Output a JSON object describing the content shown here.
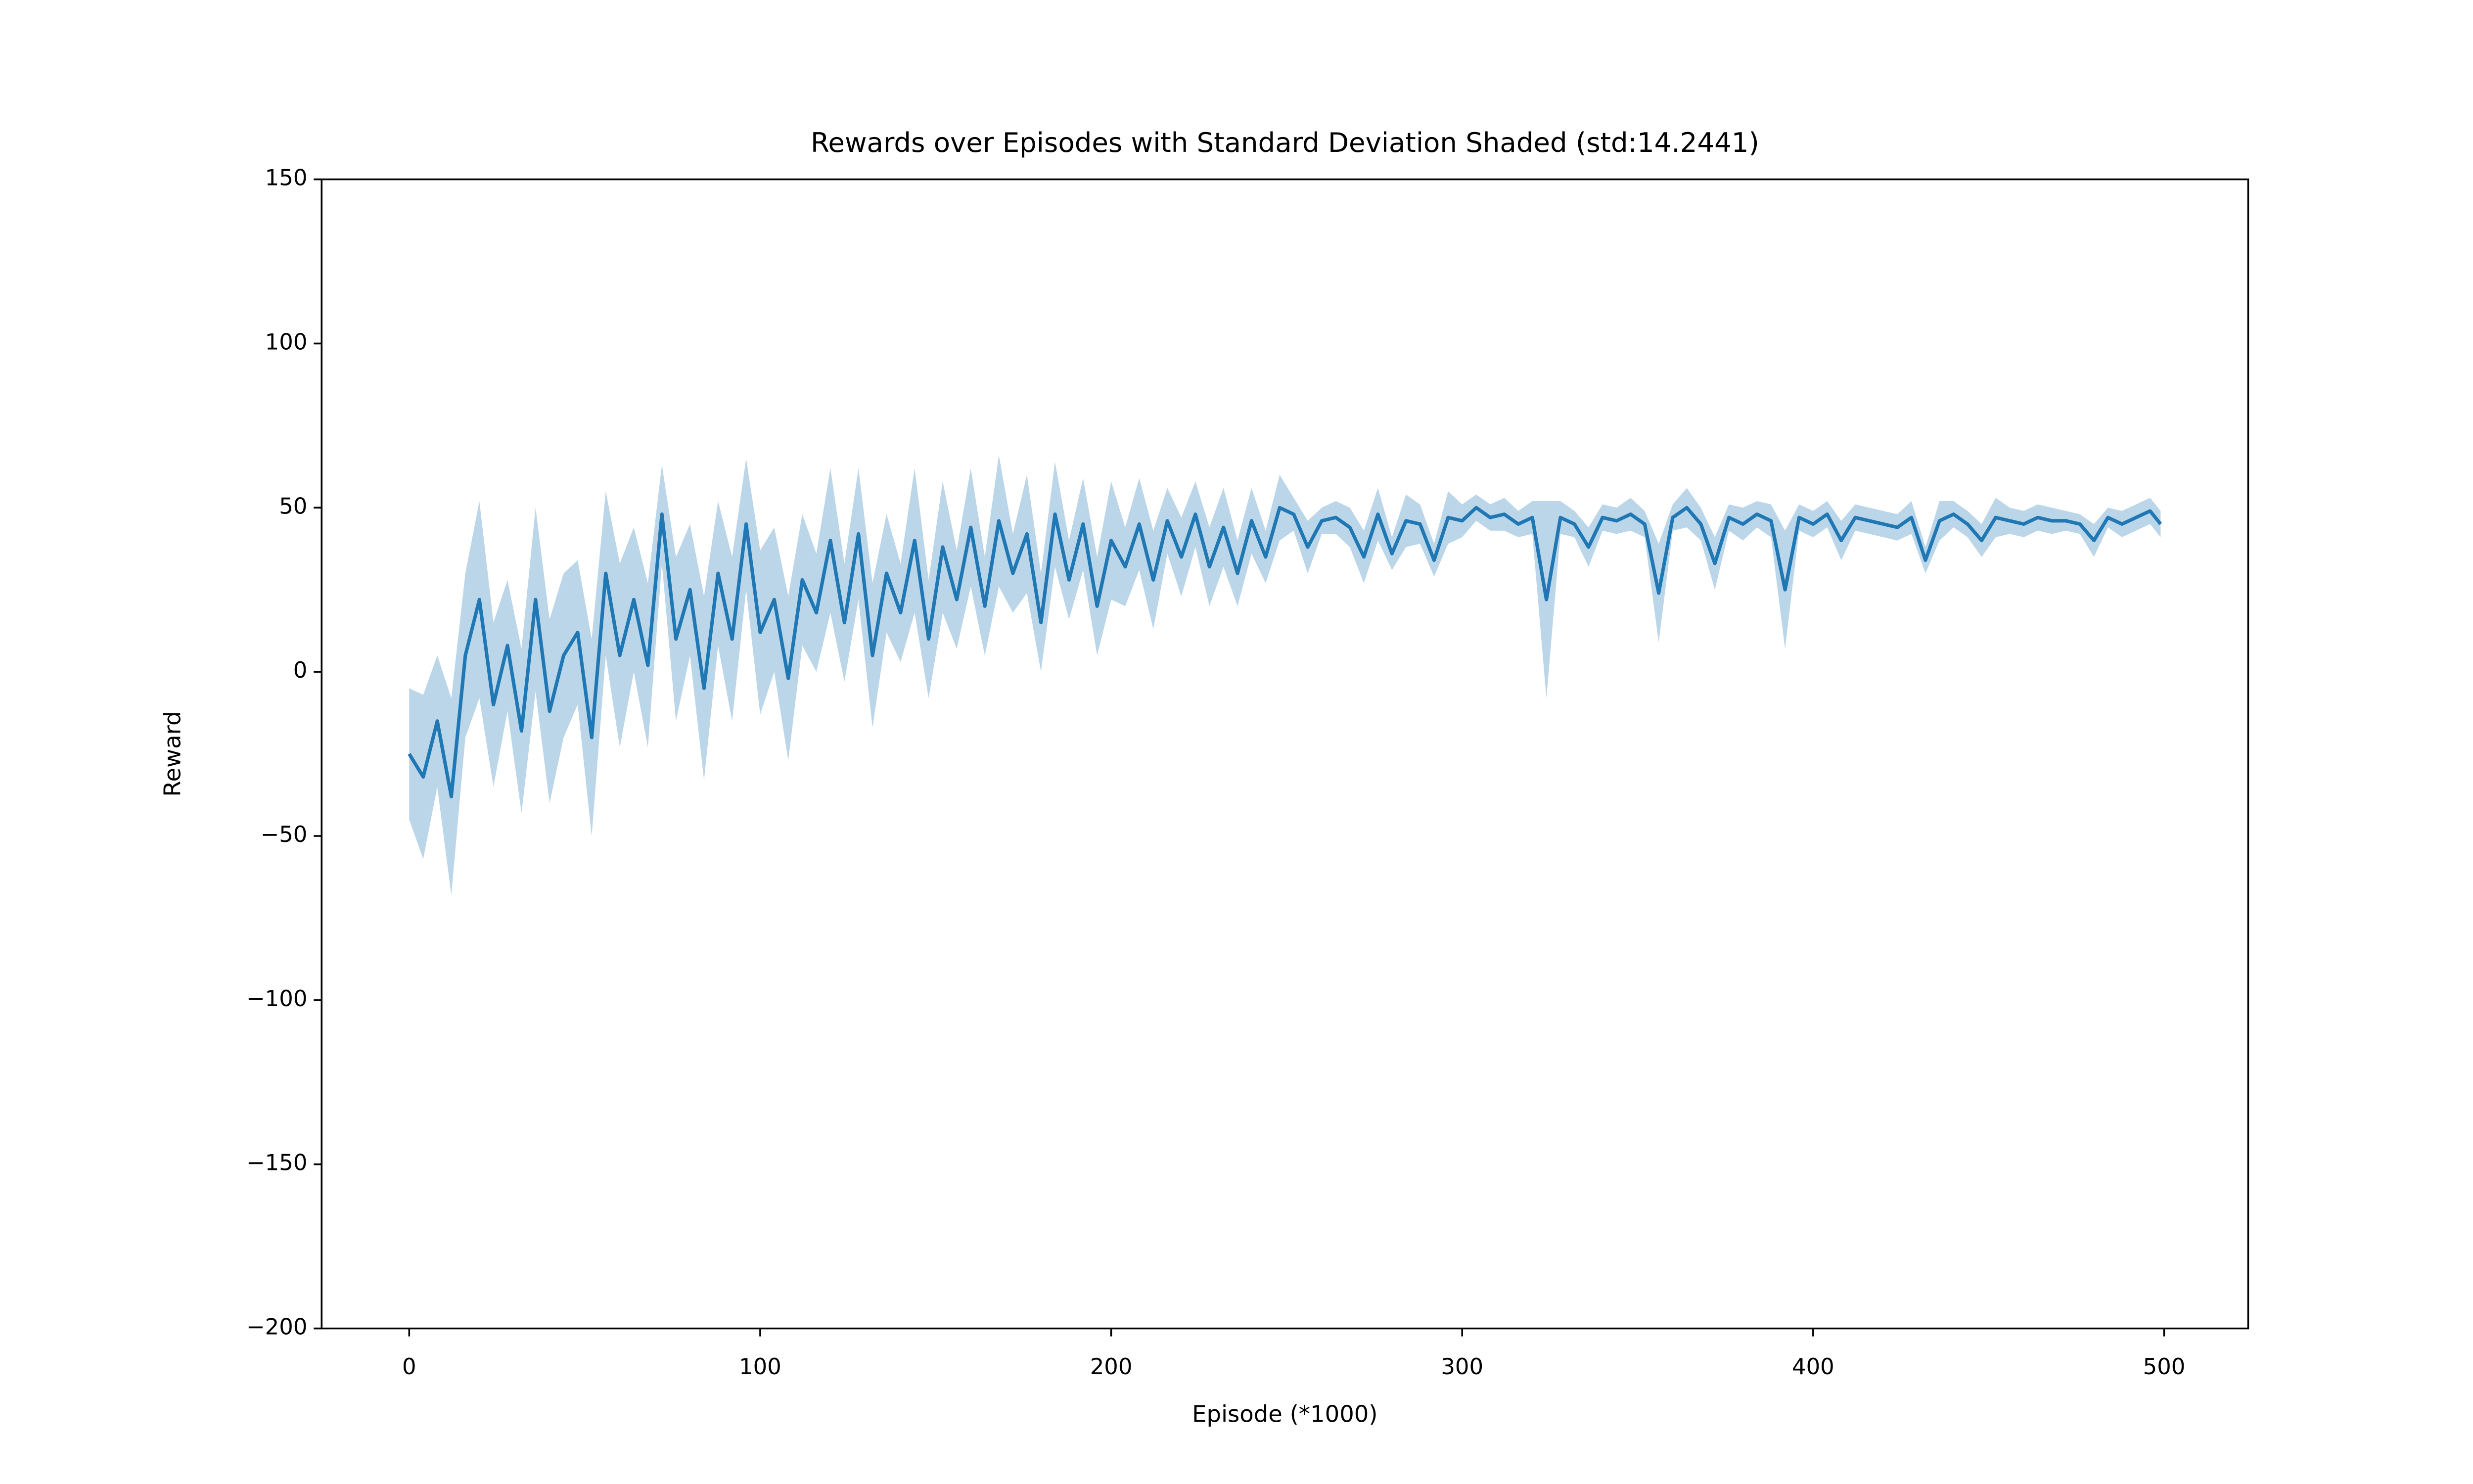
{
  "chart_data": {
    "type": "line-band",
    "title": "Rewards over Episodes with Standard Deviation Shaded (std:14.2441)",
    "xlabel": "Episode (*1000)",
    "ylabel": "Reward",
    "color": "#1f77b4",
    "band_color": "#1f77b4",
    "xlim": [
      -24.95,
      523.95
    ],
    "ylim": [
      -200,
      150
    ],
    "xticks": [
      0,
      100,
      200,
      300,
      400,
      500
    ],
    "yticks": [
      {
        "value": -200,
        "label": "−200"
      },
      {
        "value": -150,
        "label": "−150"
      },
      {
        "value": -100,
        "label": "−100"
      },
      {
        "value": -50,
        "label": "−50"
      },
      0,
      50,
      100,
      150
    ],
    "x": [
      0,
      4,
      8,
      12,
      16,
      20,
      24,
      28,
      32,
      36,
      40,
      44,
      48,
      52,
      56,
      60,
      64,
      68,
      72,
      76,
      80,
      84,
      88,
      92,
      96,
      100,
      104,
      108,
      112,
      116,
      120,
      124,
      128,
      132,
      136,
      140,
      144,
      148,
      152,
      156,
      160,
      164,
      168,
      172,
      176,
      180,
      184,
      188,
      192,
      196,
      200,
      204,
      208,
      212,
      216,
      220,
      224,
      228,
      232,
      236,
      240,
      244,
      248,
      252,
      256,
      260,
      264,
      268,
      272,
      276,
      280,
      284,
      288,
      292,
      296,
      300,
      304,
      308,
      312,
      316,
      320,
      324,
      328,
      332,
      336,
      340,
      344,
      348,
      352,
      356,
      360,
      364,
      368,
      372,
      376,
      380,
      384,
      388,
      392,
      396,
      400,
      404,
      408,
      412,
      416,
      420,
      424,
      428,
      432,
      436,
      440,
      444,
      448,
      452,
      456,
      460,
      464,
      468,
      472,
      476,
      480,
      484,
      488,
      492,
      496,
      499
    ],
    "values": [
      -25,
      -32,
      -15,
      -38,
      5,
      22,
      -10,
      8,
      -18,
      22,
      -12,
      5,
      12,
      -20,
      30,
      5,
      22,
      2,
      48,
      10,
      25,
      -5,
      30,
      10,
      45,
      12,
      22,
      -2,
      28,
      18,
      40,
      15,
      42,
      5,
      30,
      18,
      40,
      10,
      38,
      22,
      44,
      20,
      46,
      30,
      42,
      15,
      48,
      28,
      45,
      20,
      40,
      32,
      45,
      28,
      46,
      35,
      48,
      32,
      44,
      30,
      46,
      35,
      50,
      48,
      38,
      46,
      47,
      44,
      35,
      48,
      36,
      46,
      45,
      34,
      47,
      46,
      50,
      47,
      48,
      45,
      47,
      22,
      47,
      45,
      38,
      47,
      46,
      48,
      45,
      24,
      47,
      50,
      45,
      33,
      47,
      45,
      48,
      46,
      25,
      47,
      45,
      48,
      40,
      47,
      46,
      45,
      44,
      47,
      34,
      46,
      48,
      45,
      40,
      47,
      46,
      45,
      47,
      46,
      46,
      45,
      40,
      47,
      45,
      47,
      49,
      45
    ],
    "std": [
      20,
      25,
      20,
      30,
      25,
      30,
      25,
      20,
      25,
      28,
      28,
      25,
      22,
      30,
      25,
      28,
      22,
      25,
      15,
      25,
      20,
      28,
      22,
      25,
      20,
      25,
      22,
      25,
      20,
      18,
      22,
      18,
      20,
      22,
      18,
      15,
      22,
      18,
      20,
      15,
      18,
      15,
      20,
      12,
      18,
      15,
      16,
      12,
      14,
      15,
      18,
      12,
      14,
      15,
      10,
      12,
      10,
      12,
      12,
      10,
      10,
      8,
      10,
      5,
      8,
      4,
      5,
      6,
      8,
      8,
      5,
      8,
      6,
      5,
      8,
      5,
      4,
      4,
      5,
      4,
      5,
      30,
      5,
      4,
      6,
      4,
      4,
      5,
      4,
      15,
      4,
      6,
      5,
      8,
      4,
      5,
      4,
      5,
      18,
      4,
      4,
      4,
      6,
      4,
      4,
      4,
      4,
      5,
      4,
      6,
      4,
      4,
      5,
      6,
      4,
      4,
      4,
      4,
      3,
      3,
      5,
      3,
      4,
      4,
      4,
      4
    ]
  }
}
